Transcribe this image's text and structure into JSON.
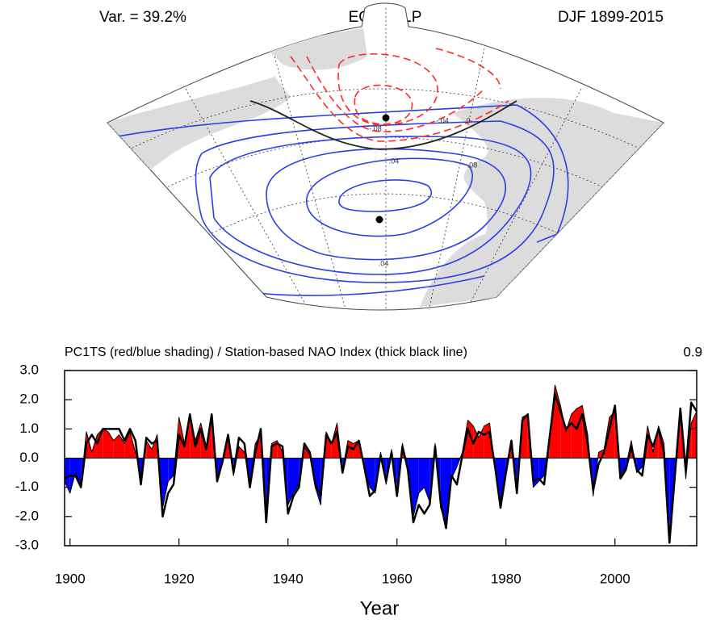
{
  "header": {
    "left": "Var. = 39.2%",
    "center": "EOF1 SLP",
    "right": "DJF 1899-2015"
  },
  "map": {
    "contour_labels": [
      "-.08",
      "-.04",
      "0",
      ".04",
      ".08",
      ".04"
    ]
  },
  "chart_data": {
    "type": "area-line",
    "title": "PC1TS (red/blue shading) / Station-based NAO Index (thick black line)",
    "corner_text": "0.9",
    "xlabel": "Year",
    "x": [
      1899,
      1900,
      1901,
      1902,
      1903,
      1904,
      1905,
      1906,
      1907,
      1908,
      1909,
      1910,
      1911,
      1912,
      1913,
      1914,
      1915,
      1916,
      1917,
      1918,
      1919,
      1920,
      1921,
      1922,
      1923,
      1924,
      1925,
      1926,
      1927,
      1928,
      1929,
      1930,
      1931,
      1932,
      1933,
      1934,
      1935,
      1936,
      1937,
      1938,
      1939,
      1940,
      1941,
      1942,
      1943,
      1944,
      1945,
      1946,
      1947,
      1948,
      1949,
      1950,
      1951,
      1952,
      1953,
      1954,
      1955,
      1956,
      1957,
      1958,
      1959,
      1960,
      1961,
      1962,
      1963,
      1964,
      1965,
      1966,
      1967,
      1968,
      1969,
      1970,
      1971,
      1972,
      1973,
      1974,
      1975,
      1976,
      1977,
      1978,
      1979,
      1980,
      1981,
      1982,
      1983,
      1984,
      1985,
      1986,
      1987,
      1988,
      1989,
      1990,
      1991,
      1992,
      1993,
      1994,
      1995,
      1996,
      1997,
      1998,
      1999,
      2000,
      2001,
      2002,
      2003,
      2004,
      2005,
      2006,
      2007,
      2008,
      2009,
      2010,
      2011,
      2012,
      2013,
      2014,
      2015
    ],
    "series": [
      {
        "color": "#000000",
        "fill_colors": [
          "#ff0000",
          "#0000ff"
        ],
        "line_width": 1,
        "values": [
          -0.8,
          -1.2,
          -0.5,
          -0.9,
          0.9,
          0.2,
          0.8,
          1.0,
          0.9,
          0.6,
          0.8,
          0.5,
          0.9,
          0.2,
          -0.6,
          0.6,
          0.3,
          0.8,
          -1.7,
          -0.8,
          -0.6,
          1.4,
          0.5,
          1.5,
          0.6,
          1.2,
          0.4,
          1.5,
          -0.7,
          -0.2,
          0.7,
          -0.6,
          0.4,
          0.2,
          -0.9,
          0.5,
          0.8,
          -1.7,
          0.5,
          0.6,
          0.2,
          -1.6,
          -1.2,
          -0.9,
          0.4,
          0.1,
          -1.0,
          -1.6,
          0.9,
          0.5,
          1.2,
          -0.4,
          0.6,
          0.5,
          0.6,
          -0.3,
          -1.0,
          -1.2,
          0.2,
          -0.9,
          0.3,
          -1.2,
          0.5,
          -0.5,
          -2.0,
          -1.2,
          -1.0,
          -1.5,
          0.5,
          -1.7,
          -2.3,
          -0.7,
          -0.3,
          0.2,
          1.3,
          1.1,
          0.7,
          1.1,
          1.2,
          -0.4,
          -1.5,
          -0.4,
          0.5,
          -1.1,
          1.4,
          1.5,
          -1.0,
          -0.8,
          -0.6,
          0.8,
          2.5,
          1.8,
          0.9,
          1.5,
          1.7,
          1.8,
          0.8,
          -1.3,
          0.2,
          0.3,
          1.4,
          1.6,
          -0.6,
          -0.3,
          0.6,
          -0.5,
          -0.3,
          1.1,
          0.2,
          1.1,
          0.5,
          -2.7,
          -0.4,
          1.5,
          -0.7,
          1.2,
          1.6
        ]
      },
      {
        "color": "#000000",
        "line_width": 2.5,
        "values": [
          -0.7,
          -0.6,
          -0.6,
          -1.0,
          0.5,
          0.8,
          0.5,
          1.0,
          1.0,
          1.0,
          1.0,
          0.6,
          1.0,
          0.6,
          -0.9,
          0.7,
          0.5,
          0.6,
          -2.0,
          -1.2,
          -0.9,
          0.8,
          0.4,
          1.5,
          0.4,
          1.0,
          0.3,
          1.5,
          -0.8,
          -0.1,
          0.8,
          -0.5,
          0.7,
          0.5,
          -1.0,
          0.2,
          1.0,
          -2.2,
          0.4,
          0.5,
          0.4,
          -1.9,
          -1.3,
          -1.0,
          0.5,
          0.2,
          -0.9,
          -1.3,
          0.8,
          0.5,
          0.9,
          -0.5,
          0.4,
          0.3,
          0.6,
          -0.3,
          -1.3,
          -1.1,
          0.1,
          -0.8,
          0.2,
          -1.3,
          0.4,
          -0.4,
          -2.2,
          -1.6,
          -1.9,
          -1.6,
          0.4,
          -1.5,
          -2.4,
          -0.6,
          -0.9,
          0.1,
          1.0,
          0.5,
          0.9,
          0.8,
          0.9,
          -0.3,
          -1.7,
          -0.5,
          0.6,
          -1.2,
          1.3,
          1.5,
          -0.8,
          -0.7,
          -0.9,
          0.7,
          2.2,
          1.6,
          1.0,
          1.2,
          1.0,
          1.5,
          0.5,
          -1.1,
          -0.2,
          0.2,
          1.0,
          1.8,
          -0.7,
          -0.4,
          0.4,
          -0.4,
          -0.6,
          0.8,
          0.4,
          1.0,
          0.2,
          -2.9,
          -0.6,
          1.7,
          -0.4,
          1.9,
          1.6
        ]
      }
    ],
    "xlim": [
      1899,
      2015
    ],
    "xticks": [
      1900,
      1920,
      1940,
      1960,
      1980,
      2000
    ],
    "ylim": [
      -3,
      3
    ],
    "yticks": [
      {
        "value": 3,
        "label": "3.0"
      },
      {
        "value": 2,
        "label": "2.0"
      },
      {
        "value": 1,
        "label": "1.0"
      },
      {
        "value": 0,
        "label": "0.0"
      },
      {
        "value": -1,
        "label": "-1.0"
      },
      {
        "value": -2,
        "label": "-2.0"
      },
      {
        "value": -3,
        "label": "-3.0"
      }
    ]
  }
}
